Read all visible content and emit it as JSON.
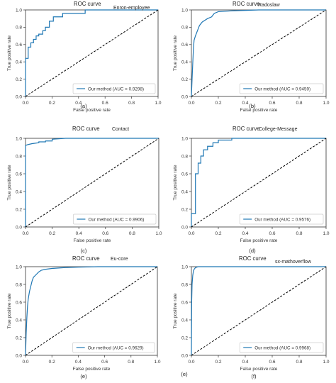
{
  "figure": {
    "x_tick_labels": [
      "0.0",
      "0.2",
      "0.4",
      "0.6",
      "0.8",
      "1.0"
    ],
    "y_tick_labels": [
      "0.0",
      "0.2",
      "0.4",
      "0.6",
      "0.8",
      "1.0"
    ]
  },
  "chart_data": [
    {
      "type": "line",
      "title": "ROC curve",
      "subtitle": "Enron-employee",
      "xlabel": "False positive rate",
      "ylabel": "True positive rate",
      "caption": "(a)",
      "xlim": [
        0,
        1
      ],
      "ylim": [
        0,
        1
      ],
      "legend": "lower right",
      "series": [
        {
          "name": "Our method (AUC = 0.9298)",
          "color": "#1f77b4",
          "x": [
            0,
            0,
            0.02,
            0.02,
            0.04,
            0.04,
            0.06,
            0.06,
            0.08,
            0.08,
            0.1,
            0.1,
            0.13,
            0.13,
            0.15,
            0.15,
            0.18,
            0.18,
            0.21,
            0.21,
            0.28,
            0.28,
            0.45,
            0.45,
            1.0
          ],
          "y": [
            0,
            0.44,
            0.44,
            0.57,
            0.57,
            0.62,
            0.62,
            0.66,
            0.66,
            0.7,
            0.7,
            0.72,
            0.72,
            0.76,
            0.76,
            0.8,
            0.8,
            0.87,
            0.87,
            0.92,
            0.92,
            0.96,
            0.96,
            1.0,
            1.0
          ]
        },
        {
          "name": "",
          "color": "#000000",
          "dashed": true,
          "x": [
            0,
            1
          ],
          "y": [
            0,
            1
          ]
        }
      ]
    },
    {
      "type": "line",
      "title": "ROC curve",
      "subtitle": "Radoslaw",
      "xlabel": "False positive rate",
      "ylabel": "True positive rate",
      "caption": "(b)",
      "xlim": [
        0,
        1
      ],
      "ylim": [
        0,
        1
      ],
      "legend": "lower right",
      "series": [
        {
          "name": "Our method (AUC = 0.9459)",
          "color": "#1f77b4",
          "x": [
            0,
            0.005,
            0.01,
            0.015,
            0.02,
            0.03,
            0.04,
            0.05,
            0.06,
            0.08,
            0.1,
            0.12,
            0.15,
            0.17,
            0.2,
            0.3,
            0.5,
            1.0
          ],
          "y": [
            0,
            0.2,
            0.38,
            0.55,
            0.65,
            0.7,
            0.74,
            0.78,
            0.82,
            0.86,
            0.88,
            0.9,
            0.92,
            0.96,
            0.98,
            0.99,
            1.0,
            1.0
          ]
        },
        {
          "name": "",
          "color": "#000000",
          "dashed": true,
          "x": [
            0,
            1
          ],
          "y": [
            0,
            1
          ]
        }
      ]
    },
    {
      "type": "line",
      "title": "ROC curve",
      "subtitle": "Contact",
      "xlabel": "False positive rate",
      "ylabel": "True positive rate",
      "caption": "(c)",
      "xlim": [
        0,
        1
      ],
      "ylim": [
        0,
        1
      ],
      "legend": "lower right",
      "series": [
        {
          "name": "Our method (AUC = 0.9906)",
          "color": "#1f77b4",
          "x": [
            0,
            0,
            0.02,
            0.05,
            0.1,
            0.1,
            0.15,
            0.15,
            0.2,
            0.2,
            0.3,
            1.0
          ],
          "y": [
            0,
            0.92,
            0.93,
            0.94,
            0.95,
            0.96,
            0.96,
            0.97,
            0.97,
            0.99,
            1.0,
            1.0
          ]
        },
        {
          "name": "",
          "color": "#000000",
          "dashed": true,
          "x": [
            0,
            1
          ],
          "y": [
            0,
            1
          ]
        }
      ]
    },
    {
      "type": "line",
      "title": "ROC curve",
      "subtitle": "College-Message",
      "xlabel": "False positive rate",
      "ylabel": "True positive rate",
      "caption": "(d)",
      "xlim": [
        0,
        1
      ],
      "ylim": [
        0,
        1
      ],
      "legend": "lower right",
      "series": [
        {
          "name": "Our method (AUC = 0.9576)",
          "color": "#1f77b4",
          "x": [
            0,
            0,
            0.03,
            0.03,
            0.05,
            0.05,
            0.07,
            0.07,
            0.09,
            0.09,
            0.12,
            0.12,
            0.16,
            0.16,
            0.2,
            0.2,
            0.3,
            0.3,
            1.0
          ],
          "y": [
            0,
            0.15,
            0.15,
            0.6,
            0.6,
            0.72,
            0.72,
            0.8,
            0.8,
            0.87,
            0.87,
            0.91,
            0.91,
            0.95,
            0.95,
            0.98,
            0.98,
            1.0,
            1.0
          ]
        },
        {
          "name": "",
          "color": "#000000",
          "dashed": true,
          "x": [
            0,
            1
          ],
          "y": [
            0,
            1
          ]
        }
      ]
    },
    {
      "type": "line",
      "title": "ROC curve",
      "subtitle": "Eu-core",
      "xlabel": "False positive rate",
      "ylabel": "True positive rate",
      "caption": "(e)",
      "xlim": [
        0,
        1
      ],
      "ylim": [
        0,
        1
      ],
      "legend": "lower right",
      "series": [
        {
          "name": "Our method (AUC = 0.9629)",
          "color": "#1f77b4",
          "x": [
            0,
            0.005,
            0.01,
            0.015,
            0.02,
            0.03,
            0.04,
            0.05,
            0.06,
            0.08,
            0.1,
            0.12,
            0.15,
            0.2,
            0.3,
            0.4,
            0.55,
            1.0
          ],
          "y": [
            0,
            0.25,
            0.42,
            0.55,
            0.63,
            0.72,
            0.78,
            0.84,
            0.88,
            0.91,
            0.94,
            0.96,
            0.97,
            0.98,
            0.99,
            0.995,
            1.0,
            1.0
          ]
        },
        {
          "name": "",
          "color": "#000000",
          "dashed": true,
          "x": [
            0,
            1
          ],
          "y": [
            0,
            1
          ]
        }
      ]
    },
    {
      "type": "line",
      "title": "ROC curve",
      "subtitle": "sx-mathoverflow",
      "xlabel": "False positive rate",
      "ylabel": "True positive rate",
      "caption": "(f)",
      "xlim": [
        0,
        1
      ],
      "ylim": [
        0,
        1
      ],
      "legend": "lower right",
      "series": [
        {
          "name": "Our method (AUC = 0.9968)",
          "color": "#1f77b4",
          "x": [
            0,
            0.002,
            0.005,
            0.01,
            0.015,
            0.02,
            0.03,
            0.05,
            0.1,
            1.0
          ],
          "y": [
            0,
            0.6,
            0.8,
            0.9,
            0.95,
            0.97,
            0.99,
            1.0,
            1.0,
            1.0
          ]
        },
        {
          "name": "",
          "color": "#000000",
          "dashed": true,
          "x": [
            0,
            1
          ],
          "y": [
            0,
            1
          ]
        }
      ]
    }
  ],
  "outside_label": "(e)"
}
